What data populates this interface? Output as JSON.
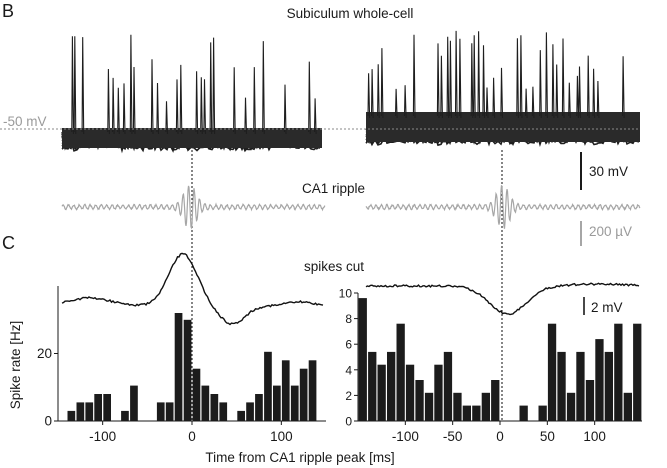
{
  "figure": {
    "panel_b": "B",
    "panel_c": "C",
    "whole_cell_title": "Subiculum whole-cell",
    "vm_label": "-50 mV",
    "scale_mv": "30 mV",
    "ripple_label": "CA1 ripple",
    "scale_uv": "200 µV",
    "spikes_cut_label": "spikes cut",
    "scale_2mv": "2 mV"
  },
  "chart_data": [
    {
      "type": "bar",
      "panel": "C-left",
      "ylabel": "Spike rate [Hz]",
      "xlabel": "Time from CA1 ripple peak [ms]",
      "ylim": [
        0,
        40
      ],
      "yticks": [
        "0",
        "20"
      ],
      "xlim": [
        -150,
        150
      ],
      "xticks": [
        "-100",
        "0",
        "100"
      ],
      "bin_width_ms": 10,
      "x": [
        -135,
        -125,
        -115,
        -105,
        -95,
        -85,
        -75,
        -65,
        -55,
        -45,
        -35,
        -25,
        -15,
        -5,
        5,
        15,
        25,
        35,
        45,
        55,
        65,
        75,
        85,
        95,
        105,
        115,
        125,
        135
      ],
      "values": [
        3,
        5.5,
        5.5,
        8,
        8,
        0,
        3,
        10.5,
        0,
        0,
        5.5,
        5.5,
        32,
        30,
        15.5,
        10.5,
        8,
        5.5,
        0,
        3,
        5.5,
        8,
        20.5,
        10.5,
        18,
        10.5,
        15.5,
        18
      ],
      "overlay": "mean membrane potential (spikes cut), arbitrary units"
    },
    {
      "type": "bar",
      "panel": "C-right",
      "ylim": [
        0,
        10
      ],
      "yticks": [
        "0",
        "2",
        "4",
        "6",
        "8",
        "10"
      ],
      "xlim": [
        -150,
        150
      ],
      "xticks": [
        "-100",
        "-50",
        "0",
        "50",
        "100"
      ],
      "bin_width_ms": 10,
      "x": [
        -145,
        -135,
        -125,
        -115,
        -105,
        -95,
        -85,
        -75,
        -65,
        -55,
        -45,
        -35,
        -25,
        -15,
        -5,
        5,
        15,
        25,
        35,
        45,
        55,
        65,
        75,
        85,
        95,
        105,
        115,
        125,
        135,
        145
      ],
      "values": [
        9.6,
        5.4,
        4.4,
        5.4,
        7.6,
        4.4,
        3.2,
        2.2,
        4.4,
        5.4,
        2.2,
        1.2,
        1.2,
        2.2,
        3.2,
        0,
        0,
        1.2,
        0,
        1.2,
        7.6,
        5.4,
        2.2,
        5.4,
        3.2,
        6.4,
        5.4,
        7.6,
        2.2,
        7.6
      ],
      "overlay": "mean membrane potential (spikes cut), arbitrary units"
    }
  ]
}
